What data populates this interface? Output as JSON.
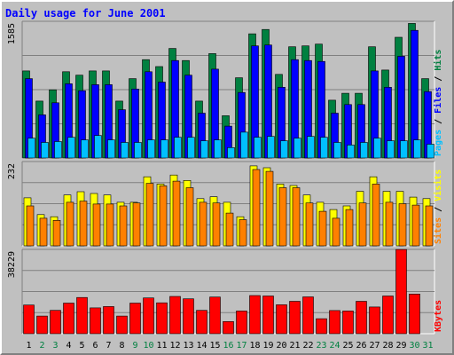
{
  "chart_data": {
    "type": "bar",
    "title": "Daily usage for June 2001",
    "categories": [
      "1",
      "2",
      "3",
      "4",
      "5",
      "6",
      "7",
      "8",
      "9",
      "10",
      "11",
      "12",
      "13",
      "14",
      "15",
      "16",
      "17",
      "18",
      "19",
      "20",
      "21",
      "22",
      "23",
      "24",
      "25",
      "26",
      "27",
      "28",
      "29",
      "30",
      "31"
    ],
    "weekend_days": [
      "2",
      "3",
      "9",
      "10",
      "16",
      "17",
      "23",
      "24",
      "30",
      "31"
    ],
    "panels": [
      {
        "id": "hits",
        "ymax": 1585,
        "ymax_label": "1585",
        "legend": [
          "Pages",
          "Files",
          "Hits"
        ],
        "series": [
          {
            "name": "Hits",
            "color": "#008040",
            "values": [
              1010,
              660,
              790,
              1000,
              960,
              1010,
              1010,
              660,
              920,
              1140,
              1060,
              1270,
              1130,
              660,
              1210,
              490,
              930,
              1440,
              1490,
              970,
              1290,
              1300,
              1320,
              670,
              750,
              750,
              1290,
              1020,
              1400,
              1560,
              920
            ]
          },
          {
            "name": "Files",
            "color": "#0000ff",
            "values": [
              920,
              500,
              640,
              860,
              780,
              850,
              850,
              560,
              800,
              1000,
              880,
              1130,
              960,
              520,
              1030,
              370,
              760,
              1300,
              1310,
              820,
              1140,
              1130,
              1120,
              520,
              620,
              620,
              1010,
              820,
              1180,
              1480,
              770
            ]
          },
          {
            "name": "Pages",
            "color": "#00c0ff",
            "values": [
              230,
              180,
              190,
              240,
              210,
              260,
              210,
              180,
              180,
              210,
              210,
              240,
              240,
              200,
              210,
              120,
              300,
              240,
              250,
              200,
              230,
              250,
              240,
              180,
              150,
              180,
              230,
              200,
              200,
              210,
              160
            ]
          }
        ]
      },
      {
        "id": "visits",
        "ymax": 232,
        "ymax_label": "232",
        "legend": [
          "Sites",
          "Visits"
        ],
        "series": [
          {
            "name": "Visits",
            "color": "#ffff00",
            "values": [
              132,
              86,
              80,
              140,
              149,
              144,
              140,
              120,
              120,
              190,
              170,
              195,
              180,
              130,
              135,
              120,
              80,
              220,
              215,
              170,
              166,
              140,
              120,
              100,
              110,
              150,
              190,
              150,
              150,
              134,
              130
            ]
          },
          {
            "name": "Sites",
            "color": "#ff8000",
            "values": [
              110,
              76,
              70,
              120,
              123,
              115,
              115,
              110,
              118,
              172,
              165,
              178,
              160,
              120,
              118,
              90,
              72,
              210,
              205,
              160,
              160,
              118,
              95,
              76,
              100,
              118,
              170,
              120,
              116,
              112,
              110
            ]
          }
        ]
      },
      {
        "id": "kbytes",
        "ymax": 38229,
        "ymax_label": "38229",
        "legend": [
          "KBytes"
        ],
        "series": [
          {
            "name": "KBytes",
            "color": "#ff0000",
            "values": [
              13000,
              8000,
              10600,
              13900,
              16400,
              11700,
              12300,
              8000,
              13900,
              16200,
              14000,
              16900,
              15800,
              10600,
              16600,
              5500,
              10300,
              17300,
              17100,
              13100,
              14700,
              16700,
              6800,
              10500,
              10300,
              14700,
              12100,
              17100,
              38200,
              18000,
              0
            ]
          }
        ]
      }
    ]
  }
}
